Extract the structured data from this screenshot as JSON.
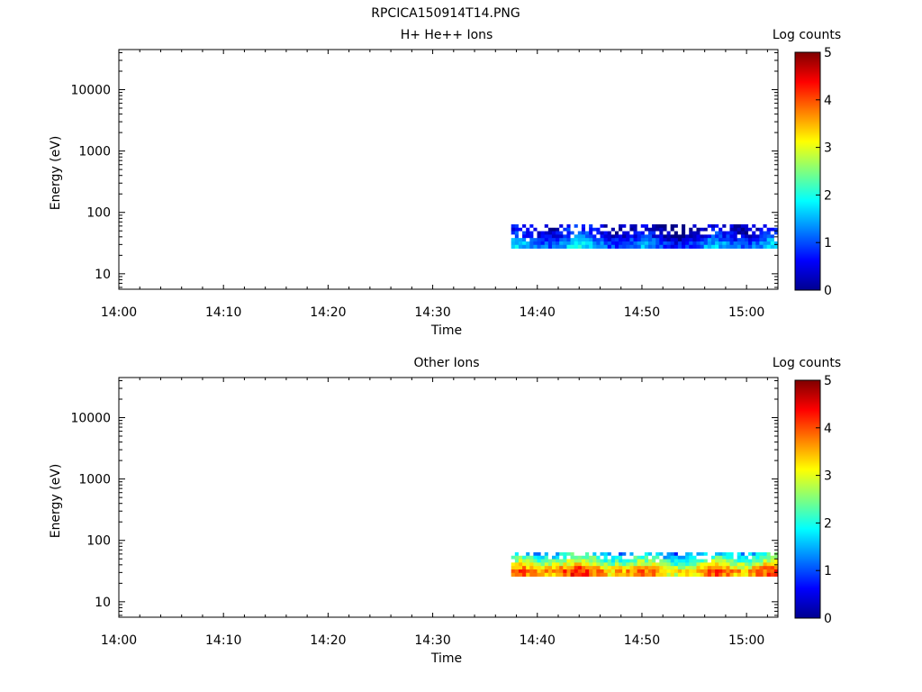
{
  "figure_title": "RPCICA150914T14.PNG",
  "chart_data": [
    {
      "type": "heatmap",
      "title": "H+ He++ Ions",
      "xlabel": "Time",
      "ylabel": "Energy (eV)",
      "y_scale": "log",
      "xlim": [
        "14:00",
        "15:03"
      ],
      "ylim": [
        5.6,
        45000
      ],
      "x_ticks": [
        "14:00",
        "14:10",
        "14:20",
        "14:30",
        "14:40",
        "14:50",
        "15:00"
      ],
      "y_ticks": [
        "10",
        "100",
        "1000",
        "10000"
      ],
      "colorbar": {
        "label": "Log counts",
        "range": [
          0,
          5
        ],
        "ticks": [
          "0",
          "1",
          "2",
          "3",
          "4",
          "5"
        ],
        "colormap": "jet"
      },
      "data_extent": {
        "time_start": "14:37:30",
        "time_end": "15:03",
        "energy_min_eV": 26,
        "energy_max_eV": 64
      },
      "grid": false,
      "data": {
        "time_bins": 72,
        "energy_bins": 7,
        "seed": 7,
        "bin_log_count_means": [
          0.35,
          0.35,
          0.55,
          0.6,
          0.9,
          1.15,
          1.25
        ],
        "spread": 0.35,
        "empty_fraction": [
          0.45,
          0.4,
          0.22,
          0.12,
          0.02,
          0,
          0
        ]
      }
    },
    {
      "type": "heatmap",
      "title": "Other Ions",
      "xlabel": "Time",
      "ylabel": "Energy (eV)",
      "y_scale": "log",
      "xlim": [
        "14:00",
        "15:03"
      ],
      "ylim": [
        5.6,
        45000
      ],
      "x_ticks": [
        "14:00",
        "14:10",
        "14:20",
        "14:30",
        "14:40",
        "14:50",
        "15:00"
      ],
      "y_ticks": [
        "10",
        "100",
        "1000",
        "10000"
      ],
      "colorbar": {
        "label": "Log counts",
        "range": [
          0,
          5
        ],
        "ticks": [
          "0",
          "1",
          "2",
          "3",
          "4",
          "5"
        ],
        "colormap": "jet"
      },
      "data_extent": {
        "time_start": "14:37:30",
        "time_end": "15:03",
        "energy_min_eV": 26,
        "energy_max_eV": 64
      },
      "grid": false,
      "data": {
        "time_bins": 72,
        "energy_bins": 7,
        "seed": 19,
        "bin_log_count_means": [
          1.6,
          2.0,
          2.4,
          2.8,
          3.3,
          3.7,
          3.6
        ],
        "spread": 0.45,
        "empty_fraction": [
          0.3,
          0.18,
          0.05,
          0,
          0,
          0,
          0
        ]
      }
    }
  ]
}
